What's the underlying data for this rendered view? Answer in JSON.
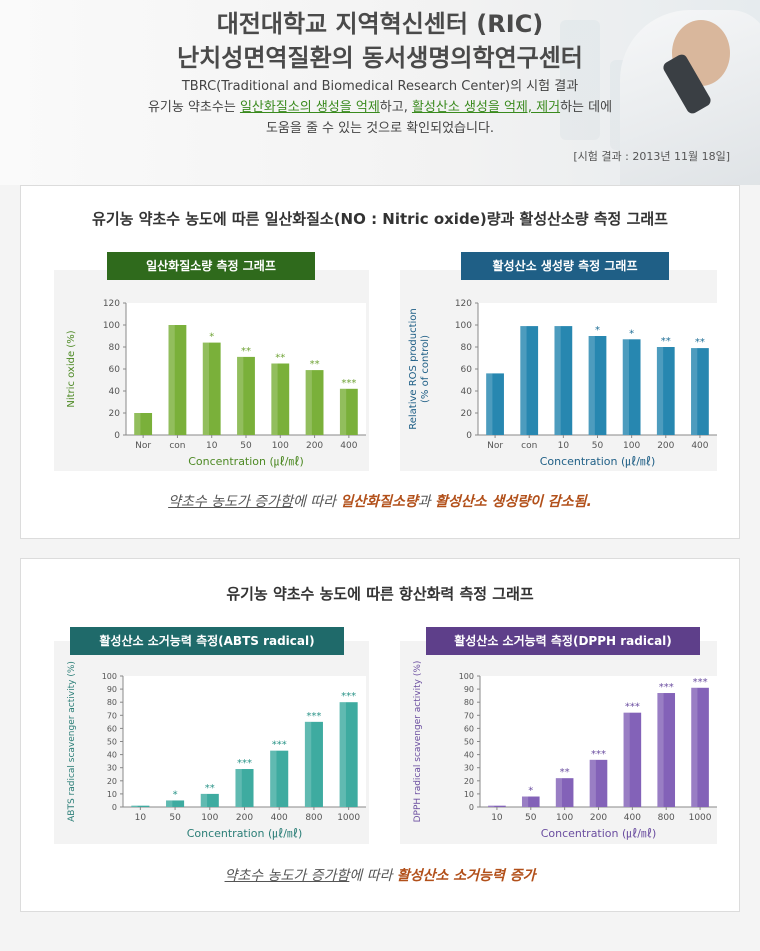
{
  "header": {
    "title_line1": "대전대학교 지역혁신센터 (RIC)",
    "title_line2": "난치성면역질환의 동서생명의학연구센터",
    "desc_line1": "TBRC(Traditional and Biomedical Research Center)의 시험 결과",
    "desc_line2_pre": "유기농 약초수는 ",
    "desc_line2_hl1": "일산화질소의 생성을 억제",
    "desc_line2_mid": "하고, ",
    "desc_line2_hl2": "활성산소 생성을 억제, 제거",
    "desc_line2_post": "하는 데에",
    "desc_line3": "도움을 줄 수 있는 것으로 확인되었습니다.",
    "date": "[시험 결과 : 2013년 11월 18일]"
  },
  "section1": {
    "title": "유기농 약초수 농도에 따른 일산화질소(NO : Nitric oxide)량과 활성산소량 측정 그래프",
    "note_pre": "약초수 농도가 증가함",
    "note_mid": "에 따라 ",
    "note_hl1": "일산화질소량",
    "note_mid2": "과 ",
    "note_hl2": "활성산소 생성량이 감소됨."
  },
  "section2": {
    "title": "유기농 약초수 농도에 따른 항산화력 측정 그래프",
    "note_pre": "약초수 농도가 증가함",
    "note_mid": "에 따라 ",
    "note_hl1": "활성산소 소거능력 증가"
  },
  "chart_data": [
    {
      "id": "no",
      "type": "bar",
      "tab_label": "일산화질소량 측정 그래프",
      "tab_color": "#2f6a1c",
      "bar_color": "#7ab03a",
      "star_color": "#6fa336",
      "axis_color": "#4e8a25",
      "categories": [
        "Nor",
        "con",
        "10",
        "50",
        "100",
        "200",
        "400"
      ],
      "values": [
        20,
        100,
        84,
        71,
        65,
        59,
        42
      ],
      "significance": [
        "",
        "",
        "*",
        "**",
        "**",
        "**",
        "***"
      ],
      "xlabel": "Concentration (㎕/㎖)",
      "ylabel": "Nitric oxide (%)",
      "ylim": [
        0,
        120
      ],
      "yticks": [
        0,
        20,
        40,
        60,
        80,
        100,
        120
      ],
      "grid": false
    },
    {
      "id": "ros",
      "type": "bar",
      "tab_label": "활성산소 생성량 측정 그래프",
      "tab_color": "#1f5f86",
      "bar_color": "#2787b0",
      "star_color": "#1f6e96",
      "axis_color": "#1f5f86",
      "categories": [
        "Nor",
        "con",
        "10",
        "50",
        "100",
        "200",
        "400"
      ],
      "values": [
        56,
        99,
        99,
        90,
        87,
        80,
        79
      ],
      "significance": [
        "",
        "",
        "",
        "*",
        "*",
        "**",
        "**"
      ],
      "xlabel": "Concentration (㎕/㎖)",
      "ylabel": "Relative ROS production",
      "ylabel2": "(% of control)",
      "ylim": [
        0,
        120
      ],
      "yticks": [
        0,
        20,
        40,
        60,
        80,
        100,
        120
      ],
      "grid": false
    },
    {
      "id": "abts",
      "type": "bar",
      "tab_label": "활성산소 소거능력 측정(ABTS radical)",
      "tab_color": "#1f6a6a",
      "bar_color": "#3eaba0",
      "star_color": "#2b9488",
      "axis_color": "#2b7e77",
      "categories": [
        "10",
        "50",
        "100",
        "200",
        "400",
        "800",
        "1000"
      ],
      "values": [
        1,
        5,
        10,
        29,
        43,
        65,
        80
      ],
      "significance": [
        "",
        "*",
        "**",
        "***",
        "***",
        "***",
        "***"
      ],
      "xlabel": "Concentration (㎕/㎖)",
      "ylabel": "ABTS radical scavenger activity (%)",
      "ylim": [
        0,
        100
      ],
      "yticks": [
        0,
        10,
        20,
        30,
        40,
        50,
        60,
        70,
        80,
        90,
        100
      ],
      "grid": false
    },
    {
      "id": "dpph",
      "type": "bar",
      "tab_label": "활성산소 소거능력 측정(DPPH radical)",
      "tab_color": "#5e3f8a",
      "bar_color": "#8362b8",
      "star_color": "#6b4ea0",
      "axis_color": "#6b4ea0",
      "categories": [
        "10",
        "50",
        "100",
        "200",
        "400",
        "800",
        "1000"
      ],
      "values": [
        1,
        8,
        22,
        36,
        72,
        87,
        91
      ],
      "significance": [
        "",
        "*",
        "**",
        "***",
        "***",
        "***",
        "***"
      ],
      "xlabel": "Concentration (㎕/㎖)",
      "ylabel": "DPPH radical scavenger activity (%)",
      "ylim": [
        0,
        100
      ],
      "yticks": [
        0,
        10,
        20,
        30,
        40,
        50,
        60,
        70,
        80,
        90,
        100
      ],
      "grid": false
    }
  ]
}
